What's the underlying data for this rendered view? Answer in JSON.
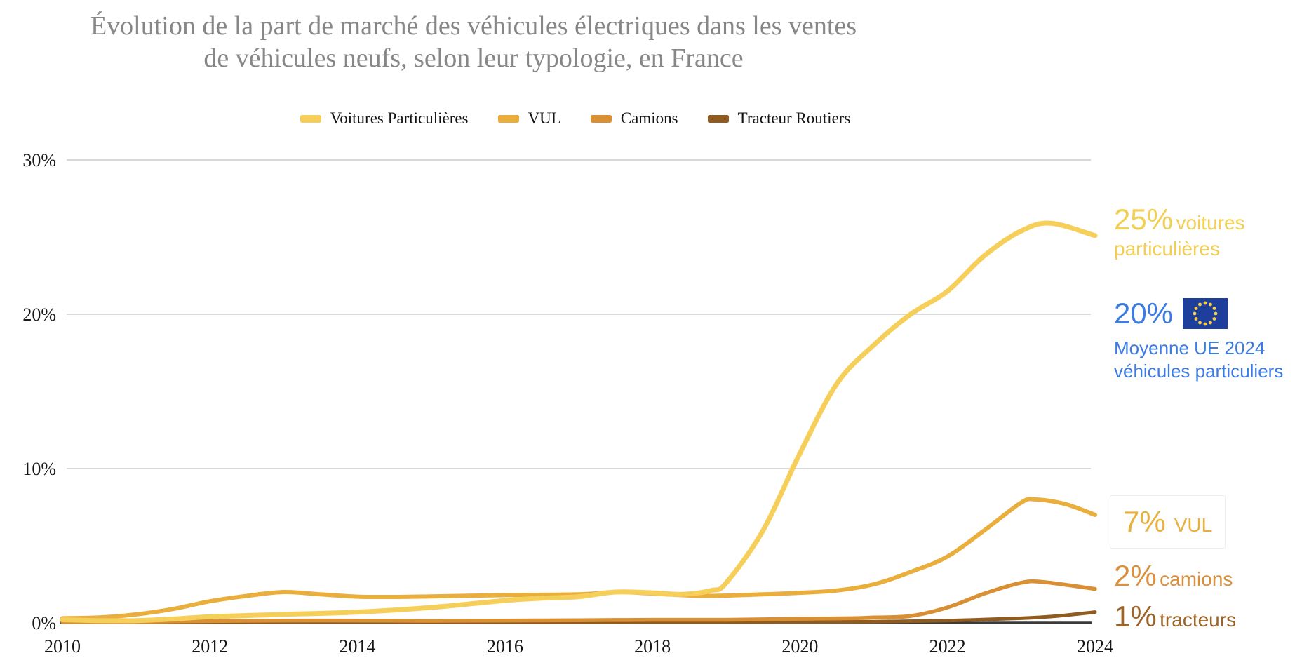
{
  "title": {
    "line1": "Évolution de la part de marché des véhicules électriques dans les ventes",
    "line2": "de véhicules neufs, selon leur typologie, en France"
  },
  "legend": {
    "items": [
      {
        "label": "Voitures Particulières",
        "color": "#F6CF5B"
      },
      {
        "label": "VUL",
        "color": "#E9AE3B"
      },
      {
        "label": "Camions",
        "color": "#D98F33"
      },
      {
        "label": "Tracteur Routiers",
        "color": "#8F5B1E"
      }
    ]
  },
  "chart_data": {
    "type": "line",
    "title": "Évolution de la part de marché des véhicules électriques dans les ventes de véhicules neufs, selon leur typologie, en France",
    "xlabel": "",
    "ylabel": "",
    "xlim": [
      2010,
      2024
    ],
    "ylim": [
      0,
      30
    ],
    "grid": true,
    "legend_position": "top",
    "x_ticks": [
      2010,
      2012,
      2014,
      2016,
      2018,
      2020,
      2022,
      2024
    ],
    "y_ticks": [
      {
        "label": "30%",
        "value": 30
      },
      {
        "label": "20%",
        "value": 20
      },
      {
        "label": "10%",
        "value": 10
      },
      {
        "label": "0%",
        "value": 0
      }
    ],
    "colors": {
      "gridline": "#D9D9D9",
      "axis_line": "#3A3A3A",
      "tick_text": "#161616"
    },
    "series": [
      {
        "name": "Voitures Particulières",
        "color": "#F6CF5B",
        "width": 7,
        "points": [
          [
            2010,
            0.2
          ],
          [
            2010.5,
            0.15
          ],
          [
            2011,
            0.15
          ],
          [
            2011.5,
            0.25
          ],
          [
            2012,
            0.4
          ],
          [
            2013,
            0.55
          ],
          [
            2014,
            0.7
          ],
          [
            2015,
            1.0
          ],
          [
            2016,
            1.45
          ],
          [
            2016.5,
            1.6
          ],
          [
            2017,
            1.7
          ],
          [
            2017.5,
            2.0
          ],
          [
            2018,
            1.95
          ],
          [
            2018.4,
            1.85
          ],
          [
            2018.8,
            2.1
          ],
          [
            2019,
            2.6
          ],
          [
            2019.5,
            6.0
          ],
          [
            2020,
            11.0
          ],
          [
            2020.5,
            15.5
          ],
          [
            2021,
            18.0
          ],
          [
            2021.5,
            20.0
          ],
          [
            2022,
            21.5
          ],
          [
            2022.5,
            23.8
          ],
          [
            2023,
            25.4
          ],
          [
            2023.4,
            25.9
          ],
          [
            2024,
            25.1
          ]
        ]
      },
      {
        "name": "VUL",
        "color": "#E9AE3B",
        "width": 6,
        "points": [
          [
            2010,
            0.3
          ],
          [
            2010.5,
            0.35
          ],
          [
            2011,
            0.55
          ],
          [
            2011.5,
            0.9
          ],
          [
            2012,
            1.4
          ],
          [
            2012.5,
            1.75
          ],
          [
            2013,
            2.0
          ],
          [
            2013.5,
            1.85
          ],
          [
            2014,
            1.7
          ],
          [
            2014.5,
            1.68
          ],
          [
            2015,
            1.72
          ],
          [
            2016,
            1.8
          ],
          [
            2017,
            1.85
          ],
          [
            2017.5,
            2.0
          ],
          [
            2018,
            1.9
          ],
          [
            2018.7,
            1.75
          ],
          [
            2019.5,
            1.85
          ],
          [
            2020,
            1.95
          ],
          [
            2020.5,
            2.1
          ],
          [
            2021,
            2.5
          ],
          [
            2021.5,
            3.3
          ],
          [
            2022,
            4.3
          ],
          [
            2022.5,
            6.0
          ],
          [
            2023,
            7.8
          ],
          [
            2023.2,
            8.0
          ],
          [
            2023.6,
            7.7
          ],
          [
            2024,
            7.0
          ]
        ]
      },
      {
        "name": "Camions",
        "color": "#D98F33",
        "width": 5.5,
        "points": [
          [
            2010,
            0.07
          ],
          [
            2011,
            0.08
          ],
          [
            2012,
            0.12
          ],
          [
            2013,
            0.15
          ],
          [
            2014,
            0.15
          ],
          [
            2015,
            0.13
          ],
          [
            2016,
            0.15
          ],
          [
            2017,
            0.17
          ],
          [
            2018,
            0.2
          ],
          [
            2019,
            0.2
          ],
          [
            2020,
            0.27
          ],
          [
            2020.7,
            0.3
          ],
          [
            2021,
            0.35
          ],
          [
            2021.5,
            0.45
          ],
          [
            2022,
            1.0
          ],
          [
            2022.5,
            1.9
          ],
          [
            2023,
            2.6
          ],
          [
            2023.3,
            2.65
          ],
          [
            2024,
            2.2
          ]
        ]
      },
      {
        "name": "Tracteur Routiers",
        "color": "#8F5B1E",
        "width": 5,
        "points": [
          [
            2010,
            0.03
          ],
          [
            2012,
            0.04
          ],
          [
            2014,
            0.05
          ],
          [
            2016,
            0.04
          ],
          [
            2018,
            0.05
          ],
          [
            2020,
            0.06
          ],
          [
            2021,
            0.08
          ],
          [
            2022,
            0.15
          ],
          [
            2023,
            0.3
          ],
          [
            2023.5,
            0.45
          ],
          [
            2024,
            0.7
          ]
        ]
      }
    ],
    "annotations": {
      "vp": {
        "big": "25%",
        "label": "voitures particulières",
        "color": "#F2CE53"
      },
      "eu": {
        "big": "20%",
        "line1": "Moyenne UE 2024",
        "line2": "véhicules particuliers",
        "color": "#3D7BE4",
        "flag": {
          "bg": "#1E3E9B",
          "stars": "#F7CF46"
        }
      },
      "vul": {
        "big": "7%",
        "label": "VUL",
        "color": "#E9B13C"
      },
      "camions": {
        "big": "2%",
        "label": "camions",
        "color": "#D98F3B"
      },
      "tracteurs": {
        "big": "1%",
        "label": "tracteurs",
        "color": "#9C6428"
      }
    }
  }
}
